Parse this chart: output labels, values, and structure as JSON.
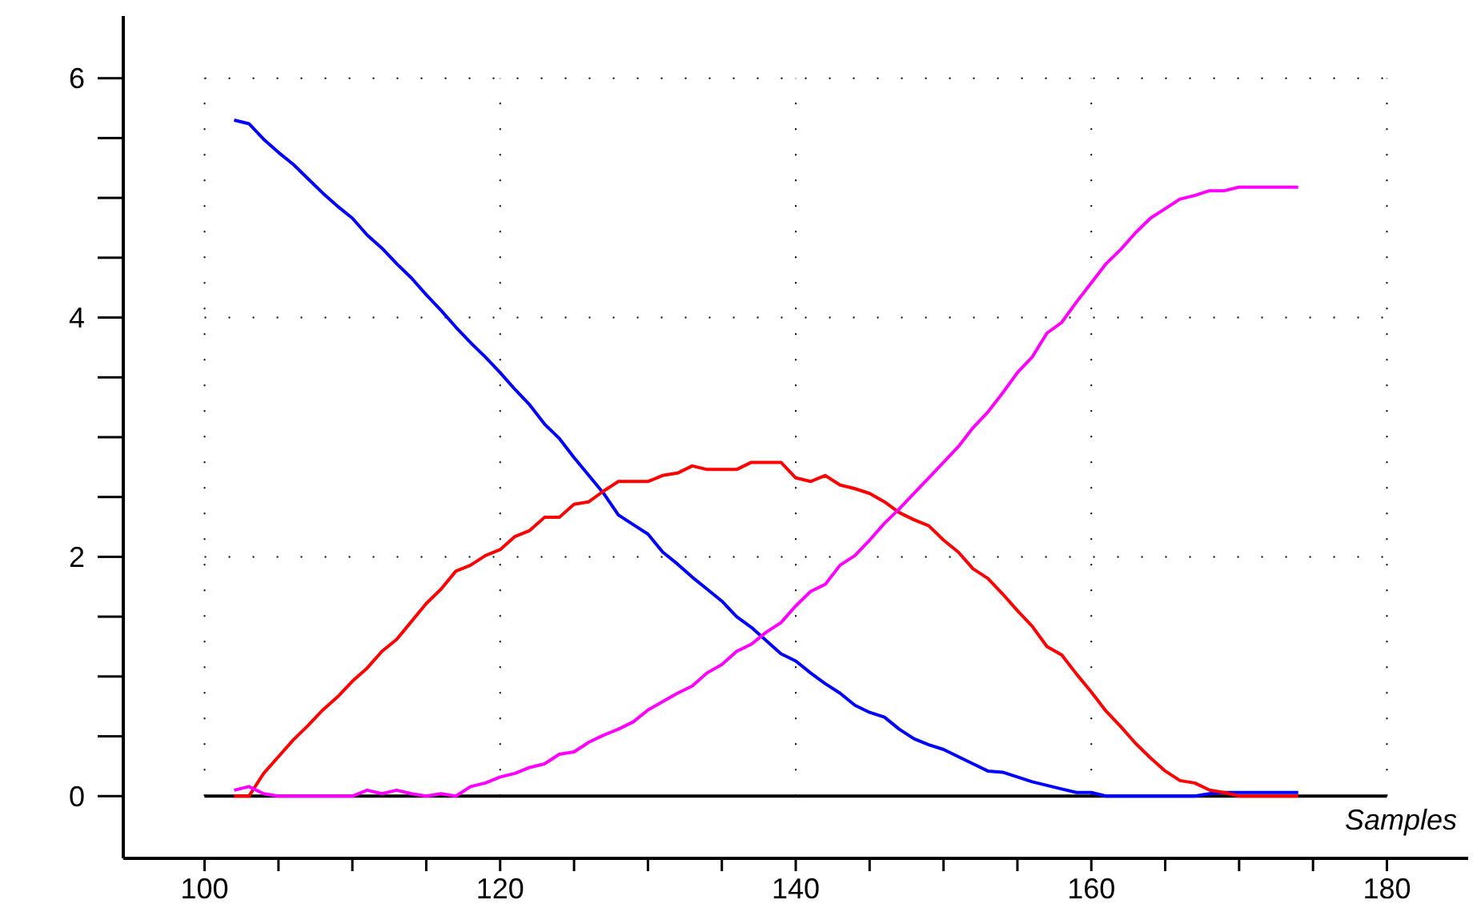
{
  "chart_data": {
    "type": "line",
    "xlabel": "Samples",
    "x": [
      102,
      103,
      104,
      105,
      106,
      107,
      108,
      109,
      110,
      111,
      112,
      113,
      114,
      115,
      116,
      117,
      118,
      119,
      120,
      121,
      122,
      123,
      124,
      125,
      126,
      127,
      128,
      129,
      130,
      131,
      132,
      133,
      134,
      135,
      136,
      137,
      138,
      139,
      140,
      141,
      142,
      143,
      144,
      145,
      146,
      147,
      148,
      149,
      150,
      151,
      152,
      153,
      154,
      155,
      156,
      157,
      158,
      159,
      160,
      161,
      162,
      163,
      164,
      165,
      166,
      167,
      168,
      169,
      170,
      171,
      172,
      173,
      174
    ],
    "series": [
      {
        "color": "#0000ff",
        "values": [
          5.65,
          5.62,
          5.49,
          5.38,
          5.28,
          5.16,
          5.04,
          4.93,
          4.83,
          4.69,
          4.58,
          4.45,
          4.33,
          4.19,
          4.06,
          3.92,
          3.79,
          3.67,
          3.54,
          3.4,
          3.27,
          3.11,
          2.99,
          2.83,
          2.68,
          2.53,
          2.35,
          2.27,
          2.19,
          2.04,
          1.94,
          1.83,
          1.73,
          1.63,
          1.5,
          1.41,
          1.3,
          1.19,
          1.13,
          1.03,
          0.94,
          0.86,
          0.76,
          0.7,
          0.66,
          0.56,
          0.48,
          0.43,
          0.39,
          0.33,
          0.27,
          0.21,
          0.2,
          0.16,
          0.12,
          0.09,
          0.06,
          0.03,
          0.03,
          0,
          0,
          0,
          0,
          0,
          0,
          0,
          0.02,
          0.03,
          0.03,
          0.03,
          0.03,
          0.03,
          0.03
        ]
      },
      {
        "color": "#ff0000",
        "values": [
          0,
          0,
          0.19,
          0.33,
          0.47,
          0.59,
          0.72,
          0.83,
          0.96,
          1.07,
          1.21,
          1.31,
          1.46,
          1.61,
          1.73,
          1.88,
          1.93,
          2.01,
          2.06,
          2.17,
          2.22,
          2.33,
          2.33,
          2.44,
          2.46,
          2.55,
          2.63,
          2.63,
          2.63,
          2.68,
          2.7,
          2.76,
          2.73,
          2.73,
          2.73,
          2.79,
          2.79,
          2.79,
          2.66,
          2.63,
          2.68,
          2.6,
          2.57,
          2.53,
          2.46,
          2.37,
          2.31,
          2.26,
          2.14,
          2.04,
          1.9,
          1.82,
          1.69,
          1.55,
          1.42,
          1.25,
          1.18,
          1.02,
          0.87,
          0.71,
          0.58,
          0.44,
          0.32,
          0.21,
          0.13,
          0.11,
          0.05,
          0.03,
          0,
          0,
          0,
          0,
          0
        ]
      },
      {
        "color": "#ff00ff",
        "values": [
          0.05,
          0.08,
          0.02,
          0,
          0,
          0,
          0,
          0,
          0,
          0.05,
          0.02,
          0.05,
          0.02,
          0,
          0.02,
          0,
          0.08,
          0.11,
          0.16,
          0.19,
          0.24,
          0.27,
          0.35,
          0.37,
          0.45,
          0.51,
          0.56,
          0.62,
          0.72,
          0.79,
          0.86,
          0.92,
          1.03,
          1.1,
          1.21,
          1.27,
          1.37,
          1.45,
          1.59,
          1.71,
          1.77,
          1.93,
          2.01,
          2.14,
          2.28,
          2.4,
          2.53,
          2.66,
          2.79,
          2.92,
          3.08,
          3.21,
          3.37,
          3.54,
          3.67,
          3.87,
          3.96,
          4.13,
          4.29,
          4.45,
          4.57,
          4.71,
          4.83,
          4.91,
          4.99,
          5.02,
          5.06,
          5.06,
          5.09,
          5.09,
          5.09,
          5.09,
          5.09
        ]
      }
    ],
    "xlim": [
      94.5,
      185.5
    ],
    "ylim": [
      -0.52,
      6.52
    ],
    "xticks": [
      100,
      {
        "value": 105,
        "label": null
      },
      {
        "value": 110,
        "label": null
      },
      {
        "value": 115,
        "label": null
      },
      120,
      {
        "value": 125,
        "label": null
      },
      {
        "value": 130,
        "label": null
      },
      {
        "value": 135,
        "label": null
      },
      140,
      {
        "value": 145,
        "label": null
      },
      {
        "value": 150,
        "label": null
      },
      {
        "value": 155,
        "label": null
      },
      160,
      {
        "value": 165,
        "label": null
      },
      {
        "value": 170,
        "label": null
      },
      {
        "value": 175,
        "label": null
      },
      180
    ],
    "yticks": [
      0,
      {
        "value": 0.5,
        "label": null
      },
      {
        "value": 1,
        "label": null
      },
      {
        "value": 1.5,
        "label": null
      },
      2,
      {
        "value": 2.5,
        "label": null
      },
      {
        "value": 3,
        "label": null
      },
      {
        "value": 3.5,
        "label": null
      },
      4,
      {
        "value": 4.5,
        "label": null
      },
      {
        "value": 5,
        "label": null
      },
      {
        "value": 5.5,
        "label": null
      },
      6
    ],
    "grid": true,
    "marker": "none",
    "line_style": "solid",
    "ref_lines": [
      {
        "axis": "y",
        "value": 0,
        "color": "#000000"
      }
    ]
  }
}
